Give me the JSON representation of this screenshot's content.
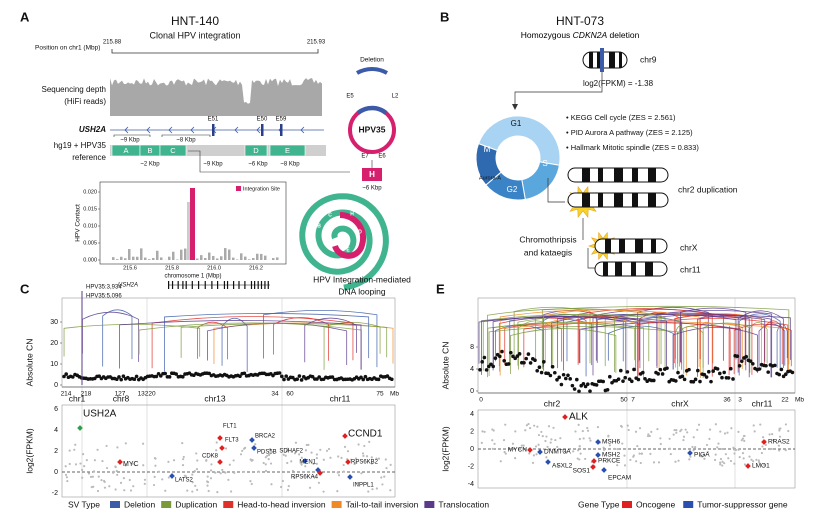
{
  "panel_a": {
    "letter": "A",
    "title": "HNT-140",
    "subtitle": "Clonal HPV integration",
    "position_label": "Position on chr1 (Mbp)",
    "position_ticks": [
      "215.88",
      "215.93"
    ],
    "depth_label": [
      "Sequencing depth",
      "(HiFi reads)"
    ],
    "gene": "USH2A",
    "reference_label": [
      "hg19 + HPV35",
      "reference"
    ],
    "exons": [
      "E51",
      "E50",
      "E59"
    ],
    "upper_sizes": [
      "~9 Kbp",
      "~8 Kbp"
    ],
    "segments": [
      "A",
      "B",
      "C",
      "D",
      "E"
    ],
    "lower_sizes": [
      "~2 Kbp",
      "~9 Kbp",
      "~6 Kbp",
      "~8 Kbp"
    ],
    "hpv": {
      "deletion": "Deletion",
      "name": "HPV35",
      "genes": [
        "E5",
        "L2",
        "E7",
        "E6"
      ],
      "insert": "H",
      "insert_size": "~6 Kbp"
    },
    "contact": {
      "ylabel": "HPV Contact",
      "yticks": [
        "0.000",
        "0.005",
        "0.010",
        "0.015",
        "0.020"
      ],
      "xticks": [
        "215.6",
        "215.8",
        "216.0",
        "216.2"
      ],
      "xlabel": "chromosome 1 (Mbp)",
      "legend": "Integration Site",
      "gene": "USH2A"
    },
    "looping": {
      "letters": [
        "A",
        "B",
        "C",
        "H",
        "D",
        "E"
      ],
      "caption": [
        "HPV Integration-mediated",
        "DNA looping"
      ]
    }
  },
  "panel_b": {
    "letter": "B",
    "title": "HNT-073",
    "subtitle": [
      "Homozygous ",
      "CDKN2A",
      " deletion"
    ],
    "chr9": "chr9",
    "fpkm": "log2(FPKM) = -1.38",
    "phases": [
      "G1",
      "S",
      "G2",
      "M"
    ],
    "aurora": "Aurora-A",
    "pathways": [
      "• KEGG Cell cycle (ZES = 2.561)",
      "• PID Aurora A pathway (ZES = 2.125)",
      "• Hallmark Mitotic spindle (ZES = 0.833)"
    ],
    "chr2_label": "chr2 duplication",
    "event": [
      "Chromothripsis",
      "and kataegis"
    ],
    "chrX": "chrX",
    "chr11": "chr11"
  },
  "panel_c": {
    "letter": "C",
    "hpv_labels": [
      "HPV35:3,934",
      "HPV35:5,096"
    ],
    "cn_label": "Absolute CN",
    "cn_ticks": [
      "0",
      "10",
      "20",
      "30"
    ],
    "positions": [
      "214",
      "218",
      "127",
      "132",
      "20",
      "34",
      "60",
      "75"
    ],
    "unit": "Mb",
    "chromosomes": [
      "chr1",
      "chr8",
      "chr13",
      "chr11"
    ],
    "expr_label": "log2(FPKM)",
    "expr_ticks": [
      "6",
      "4",
      "2",
      "0",
      "-2"
    ],
    "genes": [
      "USH2A",
      "MYC",
      "FLT1",
      "FLT3",
      "CDK8",
      "LATS2",
      "BRCA2",
      "PDS5B",
      "SDHAF2",
      "MEN1",
      "RPS6KA4",
      "CCND1",
      "RPS6KB2",
      "INPPL1"
    ]
  },
  "panel_e": {
    "letter": "E",
    "cn_label": "Absolute CN",
    "cn_ticks": [
      "0",
      "4",
      "8"
    ],
    "positions": [
      "0",
      "50",
      "7",
      "36",
      "3",
      "22"
    ],
    "unit": "Mb",
    "chromosomes": [
      "chr2",
      "chrX",
      "chr11"
    ],
    "expr_label": "log2(FPKM)",
    "expr_ticks": [
      "4",
      "2",
      "0",
      "-2",
      "-4"
    ],
    "genes": [
      "ALK",
      "MYCN",
      "DNMT3A",
      "ASXL2",
      "MSH6",
      "MSH2",
      "PRKCE",
      "SOS1",
      "EPCAM",
      "PIGA",
      "RRAS2",
      "LMO1"
    ]
  },
  "sv_legend": {
    "title": "SV Type",
    "items": [
      {
        "name": "Deletion",
        "color": "#3b5ba9"
      },
      {
        "name": "Duplication",
        "color": "#7a9a3a"
      },
      {
        "name": "Head-to-head inversion",
        "color": "#e0302a"
      },
      {
        "name": "Tail-to-tail inversion",
        "color": "#f08a24"
      },
      {
        "name": "Translocation",
        "color": "#5b3a8c"
      }
    ]
  },
  "gene_legend": {
    "title": "Gene Type",
    "items": [
      {
        "name": "Oncogene",
        "color": "#e02020"
      },
      {
        "name": "Tumor-suppressor gene",
        "color": "#2a4fb0"
      }
    ]
  }
}
